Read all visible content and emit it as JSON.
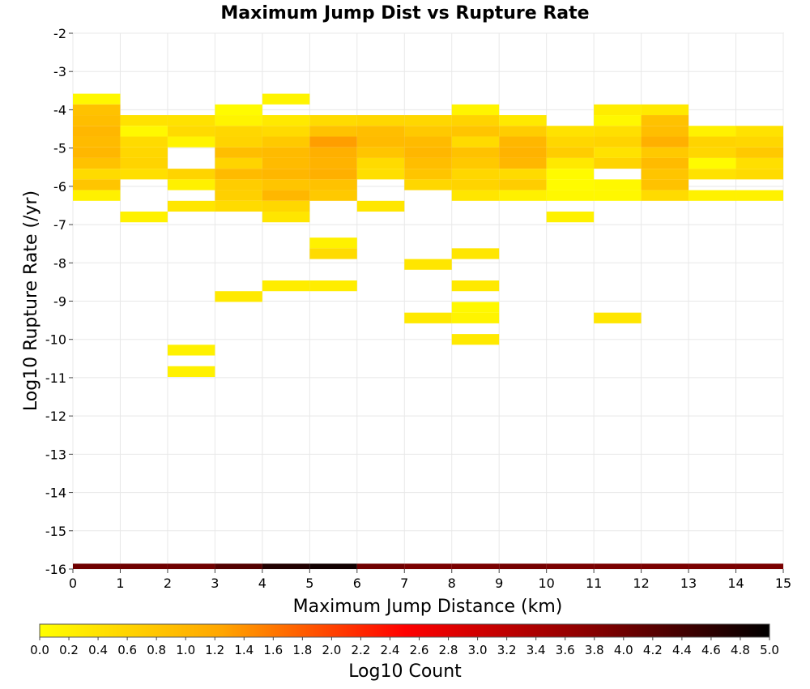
{
  "chart_data": {
    "type": "heatmap",
    "title": "Maximum Jump Dist vs Rupture Rate",
    "xlabel": "Maximum Jump Distance (km)",
    "ylabel": "Log10 Rupture Rate (/yr)",
    "xlim": [
      0,
      15
    ],
    "ylim": [
      -16,
      -2
    ],
    "x_ticks": [
      "0",
      "1",
      "2",
      "3",
      "4",
      "5",
      "6",
      "7",
      "8",
      "9",
      "10",
      "11",
      "12",
      "13",
      "14",
      "15"
    ],
    "y_ticks": [
      "-2",
      "-3",
      "-4",
      "-5",
      "-6",
      "-7",
      "-8",
      "-9",
      "-10",
      "-11",
      "-12",
      "-13",
      "-14",
      "-15",
      "-16"
    ],
    "x_bin_width": 1,
    "y_bin_height": 0.28,
    "colorbar": {
      "label": "Log10 Count",
      "range": [
        0,
        5
      ],
      "ticks": [
        "0.0",
        "0.2",
        "0.4",
        "0.6",
        "0.8",
        "1.0",
        "1.2",
        "1.4",
        "1.6",
        "1.8",
        "2.0",
        "2.2",
        "2.4",
        "2.6",
        "2.8",
        "3.0",
        "3.2",
        "3.4",
        "3.6",
        "3.8",
        "4.0",
        "4.2",
        "4.4",
        "4.6",
        "4.8",
        "5.0"
      ],
      "colors": [
        "#ffff00",
        "#ffa500",
        "#ff0000",
        "#8b0000",
        "#000000"
      ]
    },
    "cells": [
      [
        0,
        -3.72,
        0.1
      ],
      [
        0,
        -4.0,
        0.85
      ],
      [
        0,
        -4.28,
        0.9
      ],
      [
        0,
        -4.56,
        1.0
      ],
      [
        0,
        -4.84,
        0.95
      ],
      [
        0,
        -5.12,
        1.0
      ],
      [
        0,
        -5.4,
        0.85
      ],
      [
        0,
        -5.68,
        0.5
      ],
      [
        0,
        -5.96,
        0.8
      ],
      [
        0,
        -6.24,
        0.2
      ],
      [
        1,
        -4.28,
        0.4
      ],
      [
        1,
        -4.56,
        0.1
      ],
      [
        1,
        -4.84,
        0.5
      ],
      [
        1,
        -5.12,
        0.55
      ],
      [
        1,
        -5.4,
        0.6
      ],
      [
        1,
        -5.68,
        0.45
      ],
      [
        1,
        -6.8,
        0.2
      ],
      [
        2,
        -4.28,
        0.4
      ],
      [
        2,
        -4.56,
        0.5
      ],
      [
        2,
        -4.84,
        0.15
      ],
      [
        2,
        -5.68,
        0.6
      ],
      [
        2,
        -5.96,
        0.2
      ],
      [
        2,
        -6.52,
        0.35
      ],
      [
        2,
        -10.28,
        0.2
      ],
      [
        2,
        -10.84,
        0.2
      ],
      [
        3,
        -4.0,
        0.05
      ],
      [
        3,
        -4.28,
        0.15
      ],
      [
        3,
        -4.56,
        0.55
      ],
      [
        3,
        -4.84,
        0.6
      ],
      [
        3,
        -5.12,
        0.9
      ],
      [
        3,
        -5.4,
        0.6
      ],
      [
        3,
        -5.68,
        0.95
      ],
      [
        3,
        -5.96,
        0.7
      ],
      [
        3,
        -6.24,
        0.65
      ],
      [
        3,
        -6.52,
        0.5
      ],
      [
        3,
        -8.88,
        0.3
      ],
      [
        4,
        -3.72,
        0.15
      ],
      [
        4,
        -4.28,
        0.3
      ],
      [
        4,
        -4.56,
        0.5
      ],
      [
        4,
        -4.84,
        0.75
      ],
      [
        4,
        -5.12,
        0.95
      ],
      [
        4,
        -5.4,
        0.95
      ],
      [
        4,
        -5.68,
        1.0
      ],
      [
        4,
        -5.96,
        0.8
      ],
      [
        4,
        -6.24,
        1.0
      ],
      [
        4,
        -6.52,
        0.55
      ],
      [
        4,
        -6.8,
        0.35
      ],
      [
        4,
        -8.6,
        0.25
      ],
      [
        5,
        -4.28,
        0.5
      ],
      [
        5,
        -4.56,
        0.85
      ],
      [
        5,
        -4.84,
        1.3
      ],
      [
        5,
        -5.12,
        1.1
      ],
      [
        5,
        -5.4,
        1.05
      ],
      [
        5,
        -5.68,
        1.1
      ],
      [
        5,
        -5.96,
        0.85
      ],
      [
        5,
        -6.24,
        0.75
      ],
      [
        5,
        -7.48,
        0.2
      ],
      [
        5,
        -7.76,
        0.5
      ],
      [
        5,
        -8.6,
        0.25
      ],
      [
        6,
        -4.28,
        0.55
      ],
      [
        6,
        -4.56,
        0.9
      ],
      [
        6,
        -4.84,
        0.95
      ],
      [
        6,
        -5.12,
        0.8
      ],
      [
        6,
        -5.4,
        0.5
      ],
      [
        6,
        -5.68,
        0.45
      ],
      [
        6,
        -6.52,
        0.35
      ],
      [
        7,
        -4.28,
        0.55
      ],
      [
        7,
        -4.56,
        0.75
      ],
      [
        7,
        -4.84,
        0.95
      ],
      [
        7,
        -5.12,
        1.0
      ],
      [
        7,
        -5.4,
        0.9
      ],
      [
        7,
        -5.68,
        0.8
      ],
      [
        7,
        -5.96,
        0.55
      ],
      [
        7,
        -8.04,
        0.35
      ],
      [
        7,
        -9.44,
        0.3
      ],
      [
        8,
        -4.0,
        0.15
      ],
      [
        8,
        -4.28,
        0.6
      ],
      [
        8,
        -4.56,
        0.8
      ],
      [
        8,
        -4.84,
        0.5
      ],
      [
        8,
        -5.12,
        0.85
      ],
      [
        8,
        -5.4,
        0.75
      ],
      [
        8,
        -5.68,
        0.55
      ],
      [
        8,
        -5.96,
        0.6
      ],
      [
        8,
        -6.24,
        0.35
      ],
      [
        8,
        -7.76,
        0.35
      ],
      [
        8,
        -8.6,
        0.3
      ],
      [
        8,
        -9.16,
        0.1
      ],
      [
        8,
        -9.44,
        0.15
      ],
      [
        8,
        -10.0,
        0.3
      ],
      [
        9,
        -4.28,
        0.3
      ],
      [
        9,
        -4.56,
        0.7
      ],
      [
        9,
        -4.84,
        1.0
      ],
      [
        9,
        -5.12,
        1.05
      ],
      [
        9,
        -5.4,
        1.0
      ],
      [
        9,
        -5.68,
        0.5
      ],
      [
        9,
        -5.96,
        0.7
      ],
      [
        9,
        -6.24,
        0.2
      ],
      [
        10,
        -4.56,
        0.4
      ],
      [
        10,
        -4.84,
        0.55
      ],
      [
        10,
        -5.12,
        0.7
      ],
      [
        10,
        -5.4,
        0.3
      ],
      [
        10,
        -5.68,
        0.05
      ],
      [
        10,
        -5.96,
        0.05
      ],
      [
        10,
        -6.24,
        0.1
      ],
      [
        10,
        -6.8,
        0.2
      ],
      [
        11,
        -4.0,
        0.25
      ],
      [
        11,
        -4.28,
        0.1
      ],
      [
        11,
        -4.56,
        0.45
      ],
      [
        11,
        -4.84,
        0.6
      ],
      [
        11,
        -5.12,
        0.4
      ],
      [
        11,
        -5.4,
        0.6
      ],
      [
        11,
        -5.96,
        0.1
      ],
      [
        11,
        -6.24,
        0.1
      ],
      [
        11,
        -9.44,
        0.35
      ],
      [
        12,
        -4.0,
        0.3
      ],
      [
        12,
        -4.28,
        0.85
      ],
      [
        12,
        -4.56,
        0.9
      ],
      [
        12,
        -4.84,
        1.1
      ],
      [
        12,
        -5.12,
        0.75
      ],
      [
        12,
        -5.4,
        0.95
      ],
      [
        12,
        -5.68,
        0.8
      ],
      [
        12,
        -5.96,
        0.85
      ],
      [
        12,
        -6.24,
        0.5
      ],
      [
        13,
        -4.56,
        0.2
      ],
      [
        13,
        -4.84,
        0.6
      ],
      [
        13,
        -5.12,
        0.55
      ],
      [
        13,
        -5.4,
        0.05
      ],
      [
        13,
        -5.68,
        0.4
      ],
      [
        13,
        -6.24,
        0.2
      ],
      [
        14,
        -4.56,
        0.4
      ],
      [
        14,
        -4.84,
        0.55
      ],
      [
        14,
        -5.12,
        0.75
      ],
      [
        14,
        -5.4,
        0.45
      ],
      [
        14,
        -5.68,
        0.5
      ],
      [
        14,
        -6.24,
        0.2
      ],
      [
        0,
        -16.0,
        4.0
      ],
      [
        1,
        -16.0,
        4.0
      ],
      [
        2,
        -16.0,
        4.0
      ],
      [
        3,
        -16.0,
        4.25
      ],
      [
        4,
        -16.0,
        4.7
      ],
      [
        5,
        -16.0,
        4.85
      ],
      [
        6,
        -16.0,
        4.0
      ],
      [
        7,
        -16.0,
        3.9
      ],
      [
        8,
        -16.0,
        3.9
      ],
      [
        9,
        -16.0,
        3.95
      ],
      [
        10,
        -16.0,
        3.9
      ],
      [
        11,
        -16.0,
        3.9
      ],
      [
        12,
        -16.0,
        3.9
      ],
      [
        13,
        -16.0,
        3.9
      ],
      [
        14,
        -16.0,
        3.9
      ]
    ]
  }
}
